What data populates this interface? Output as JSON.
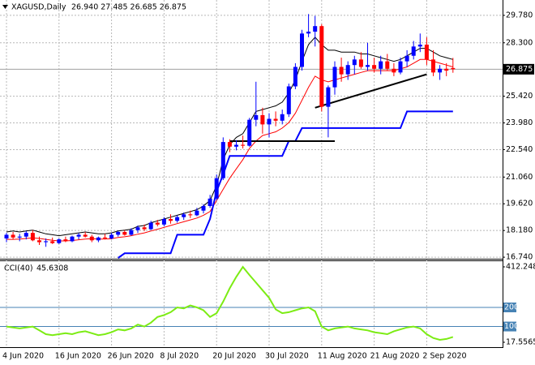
{
  "chart_data": [
    {
      "type": "candlestick",
      "symbol": "XAGUSD,Daily",
      "ohlc_text": "26.940 27.485 26.685 26.875",
      "categories": [
        "4 Jun 2020",
        null,
        null,
        null,
        null,
        null,
        null,
        null,
        "16 Jun 2020",
        null,
        null,
        null,
        null,
        null,
        null,
        null,
        "26 Jun 2020",
        null,
        null,
        null,
        null,
        null,
        null,
        null,
        "8 Jul 2020",
        null,
        null,
        null,
        null,
        null,
        null,
        null,
        "20 Jul 2020",
        null,
        null,
        null,
        null,
        null,
        null,
        null,
        "30 Jul 2020",
        null,
        null,
        null,
        null,
        null,
        null,
        null,
        "11 Aug 2020",
        null,
        null,
        null,
        null,
        null,
        null,
        null,
        "21 Aug 2020",
        null,
        null,
        null,
        null,
        null,
        null,
        null,
        "2 Sep 2020",
        null,
        null,
        null,
        null
      ],
      "open": [
        17.75,
        17.95,
        17.8,
        17.85,
        18.05,
        17.65,
        17.55,
        17.6,
        17.5,
        17.7,
        17.6,
        17.85,
        17.95,
        17.85,
        17.65,
        17.8,
        17.75,
        17.95,
        18.1,
        17.95,
        18.2,
        18.35,
        18.25,
        18.6,
        18.5,
        18.8,
        18.7,
        18.9,
        19.05,
        19.0,
        19.25,
        19.5,
        19.9,
        21.0,
        22.95,
        22.7,
        22.8,
        22.75,
        24.15,
        24.4,
        23.9,
        24.2,
        24.1,
        24.45,
        25.95,
        27.0,
        28.8,
        28.9,
        29.2,
        24.85,
        25.9,
        27.0,
        26.6,
        27.1,
        27.4,
        27.0,
        27.1,
        26.9,
        27.3,
        26.9,
        26.7,
        27.3,
        27.6,
        28.1,
        28.2,
        27.4,
        26.7,
        26.9,
        26.94
      ],
      "high": [
        18.05,
        18.1,
        18.0,
        18.15,
        18.2,
        17.85,
        17.75,
        17.8,
        17.75,
        17.85,
        17.9,
        18.05,
        18.1,
        17.95,
        17.85,
        18.0,
        18.05,
        18.15,
        18.2,
        18.3,
        18.45,
        18.5,
        18.7,
        18.75,
        18.9,
        19.05,
        19.0,
        19.15,
        19.25,
        19.4,
        19.6,
        20.1,
        21.2,
        23.2,
        23.1,
        23.05,
        23.3,
        24.25,
        26.2,
        24.8,
        24.5,
        24.6,
        24.7,
        26.1,
        27.2,
        29.0,
        29.85,
        29.75,
        29.3,
        26.0,
        27.3,
        27.5,
        27.3,
        27.6,
        27.8,
        28.3,
        27.5,
        27.6,
        27.7,
        27.2,
        27.5,
        27.9,
        28.4,
        28.8,
        28.6,
        27.9,
        27.1,
        27.2,
        27.485
      ],
      "low": [
        17.55,
        17.7,
        17.6,
        17.7,
        17.6,
        17.4,
        17.3,
        17.45,
        17.45,
        17.55,
        17.55,
        17.7,
        17.8,
        17.55,
        17.55,
        17.7,
        17.7,
        17.85,
        17.9,
        17.9,
        18.05,
        18.15,
        18.2,
        18.4,
        18.4,
        18.55,
        18.6,
        18.75,
        18.85,
        18.95,
        19.1,
        19.4,
        19.8,
        20.9,
        22.4,
        22.5,
        22.6,
        22.7,
        23.8,
        23.4,
        23.2,
        23.8,
        23.9,
        24.3,
        25.8,
        26.8,
        28.6,
        28.1,
        24.6,
        23.2,
        25.5,
        26.2,
        26.3,
        26.6,
        26.9,
        26.8,
        26.7,
        26.6,
        26.8,
        26.5,
        26.6,
        27.0,
        27.4,
        27.8,
        27.1,
        26.5,
        26.3,
        26.5,
        26.685
      ],
      "close": [
        17.95,
        17.8,
        17.85,
        18.05,
        17.65,
        17.55,
        17.6,
        17.5,
        17.7,
        17.6,
        17.85,
        17.95,
        17.85,
        17.65,
        17.8,
        17.75,
        17.95,
        18.1,
        17.95,
        18.2,
        18.35,
        18.25,
        18.6,
        18.5,
        18.8,
        18.7,
        18.9,
        19.05,
        19.0,
        19.25,
        19.5,
        19.9,
        21.0,
        22.95,
        22.7,
        22.8,
        22.75,
        24.15,
        24.4,
        23.9,
        24.2,
        24.1,
        24.45,
        25.95,
        27.0,
        28.8,
        28.9,
        29.2,
        24.85,
        25.9,
        27.0,
        26.6,
        27.1,
        27.4,
        27.0,
        27.1,
        26.9,
        27.3,
        26.9,
        26.7,
        27.3,
        27.6,
        28.1,
        28.2,
        27.4,
        26.7,
        26.9,
        26.8,
        26.875
      ],
      "up_color": "#0000ff",
      "down_color": "#ff0000",
      "ylim": [
        16.7,
        30.52
      ],
      "yticks": [
        {
          "value": 29.78,
          "label": "29.780"
        },
        {
          "value": 28.3,
          "label": "28.300"
        },
        {
          "value": 25.42,
          "label": "25.420"
        },
        {
          "value": 23.98,
          "label": "23.980"
        },
        {
          "value": 22.54,
          "label": "22.540"
        },
        {
          "value": 21.06,
          "label": "21.060"
        },
        {
          "value": 19.62,
          "label": "19.620"
        },
        {
          "value": 18.18,
          "label": "18.180"
        },
        {
          "value": 16.74,
          "label": "16.740"
        }
      ],
      "last_price": {
        "value": 26.875,
        "label": "26.875"
      },
      "overlays": [
        {
          "color": "#ff0000",
          "values": [
            17.7,
            17.7,
            17.72,
            17.75,
            17.78,
            17.75,
            17.7,
            17.65,
            17.62,
            17.62,
            17.64,
            17.68,
            17.72,
            17.74,
            17.72,
            17.72,
            17.74,
            17.8,
            17.84,
            17.9,
            17.98,
            18.05,
            18.15,
            18.25,
            18.35,
            18.45,
            18.55,
            18.65,
            18.75,
            18.85,
            19.0,
            19.2,
            19.8,
            20.4,
            21.0,
            21.5,
            22.0,
            22.6,
            23.0,
            23.3,
            23.4,
            23.5,
            23.7,
            24.0,
            24.5,
            25.2,
            25.9,
            26.5,
            26.3,
            26.2,
            26.3,
            26.4,
            26.5,
            26.6,
            26.7,
            26.8,
            26.8,
            26.8,
            26.8,
            26.8,
            26.9,
            27.0,
            27.2,
            27.4,
            27.4,
            27.3,
            27.2,
            27.1,
            27.0
          ]
        },
        {
          "color": "#000000",
          "values": [
            18.1,
            18.15,
            18.1,
            18.15,
            18.2,
            18.1,
            18.0,
            17.95,
            17.9,
            17.95,
            18.0,
            18.05,
            18.1,
            18.05,
            18.0,
            18.0,
            18.05,
            18.15,
            18.2,
            18.25,
            18.4,
            18.45,
            18.6,
            18.7,
            18.8,
            18.9,
            19.0,
            19.1,
            19.2,
            19.3,
            19.5,
            19.8,
            20.6,
            22.0,
            22.8,
            23.2,
            23.4,
            24.0,
            24.6,
            24.7,
            24.8,
            24.9,
            25.1,
            25.6,
            26.3,
            27.3,
            28.2,
            28.6,
            28.2,
            27.9,
            27.9,
            27.8,
            27.8,
            27.8,
            27.7,
            27.7,
            27.6,
            27.5,
            27.4,
            27.3,
            27.4,
            27.6,
            27.8,
            28.0,
            28.0,
            27.8,
            27.6,
            27.5,
            27.4
          ]
        },
        {
          "color": "#0000ff",
          "values": [
            null,
            null,
            null,
            null,
            null,
            null,
            null,
            null,
            null,
            null,
            null,
            null,
            null,
            null,
            null,
            null,
            null,
            16.7,
            16.95,
            16.95,
            16.95,
            16.95,
            16.95,
            16.95,
            16.95,
            16.95,
            17.95,
            17.95,
            17.95,
            17.95,
            17.95,
            18.8,
            20.3,
            21.2,
            22.2,
            22.2,
            22.2,
            22.2,
            22.2,
            22.2,
            22.2,
            22.2,
            22.2,
            23.0,
            23.0,
            23.7,
            23.7,
            23.7,
            23.7,
            23.7,
            23.7,
            23.7,
            23.7,
            23.7,
            23.7,
            23.7,
            23.7,
            23.7,
            23.7,
            23.7,
            23.7,
            24.6,
            24.6,
            24.6,
            24.6,
            24.6,
            24.6,
            24.6,
            24.6
          ]
        }
      ],
      "trendlines": [
        {
          "color": "#000000",
          "x": [
            34,
            50
          ],
          "values": [
            23.0,
            23.0
          ]
        },
        {
          "color": "#000000",
          "x": [
            47,
            64
          ],
          "values": [
            24.8,
            26.6
          ]
        }
      ],
      "grid": true
    },
    {
      "type": "line",
      "title": "CCI(40)",
      "current": 45.6308,
      "color": "#7cec14",
      "values": [
        100,
        95,
        90,
        95,
        100,
        80,
        60,
        55,
        60,
        65,
        60,
        70,
        75,
        65,
        55,
        60,
        70,
        85,
        80,
        90,
        110,
        100,
        120,
        150,
        160,
        175,
        200,
        195,
        210,
        200,
        185,
        150,
        170,
        230,
        300,
        360,
        412,
        370,
        330,
        290,
        250,
        190,
        170,
        175,
        185,
        195,
        200,
        180,
        100,
        80,
        90,
        95,
        100,
        90,
        85,
        80,
        70,
        65,
        60,
        75,
        85,
        95,
        100,
        90,
        60,
        40,
        30,
        35,
        45.6308
      ],
      "ylim": [
        -8,
        442
      ],
      "yticks": [
        412.248,
        17.5565
      ],
      "levels": [
        200,
        100
      ],
      "level_color": "#4682b4"
    }
  ]
}
